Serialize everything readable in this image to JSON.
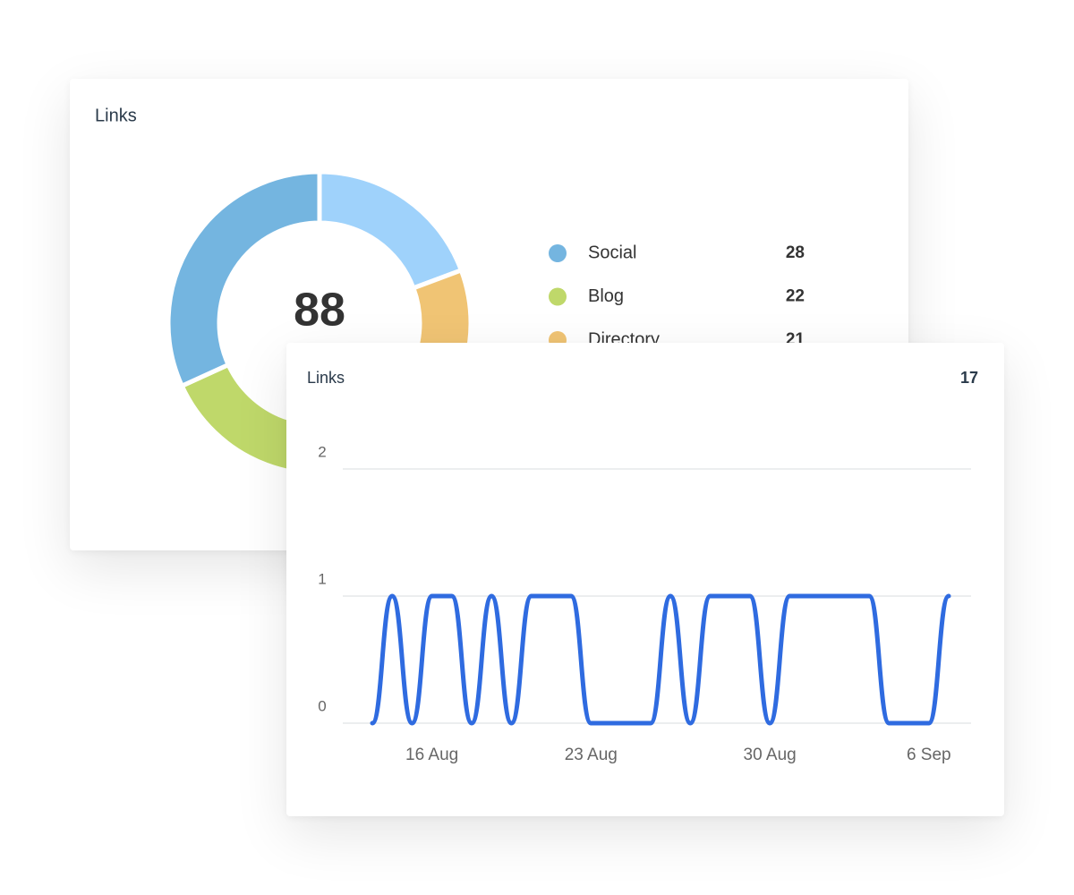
{
  "chart_data": [
    {
      "type": "donut",
      "title": "Links",
      "total": 88,
      "categories": [
        "Social",
        "Blog",
        "Directory",
        null
      ],
      "values": [
        28,
        22,
        21,
        17
      ],
      "colors": [
        "#74b5e0",
        "#bfd86a",
        "#f0c474",
        "#9fd2fb"
      ]
    },
    {
      "type": "line",
      "title": "Links",
      "total": 17,
      "categories": [
        null,
        null,
        null,
        "16 Aug",
        null,
        null,
        null,
        null,
        null,
        null,
        null,
        "23 Aug",
        null,
        null,
        null,
        null,
        null,
        null,
        null,
        null,
        "30 Aug",
        null,
        null,
        null,
        null,
        null,
        null,
        null,
        "6 Sep",
        null
      ],
      "values": [
        0,
        1,
        0,
        1,
        1,
        0,
        1,
        0,
        1,
        1,
        1,
        0,
        0,
        0,
        0,
        1,
        0,
        1,
        1,
        1,
        0,
        1,
        1,
        1,
        1,
        1,
        0,
        0,
        0,
        1
      ],
      "color": "#2f6be0",
      "ylim": [
        0,
        2
      ],
      "yticks": [
        0,
        1,
        2
      ],
      "grid": true
    }
  ]
}
